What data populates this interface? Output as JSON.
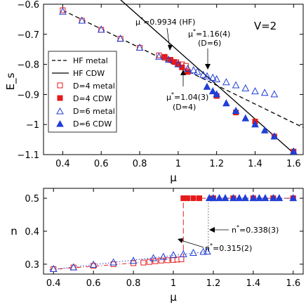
{
  "chart_data": [
    {
      "type": "scatter",
      "xlabel": "μ",
      "ylabel": "E_s",
      "xlim": [
        0.3,
        1.65
      ],
      "ylim": [
        -1.1,
        -0.6
      ],
      "x_ticks": [
        "0.4",
        "0.6",
        "0.8",
        "1",
        "1.2",
        "1.4",
        "1.6"
      ],
      "y_ticks": [
        "−0.6",
        "−0.7",
        "−0.8",
        "−0.9",
        "−1",
        "−1.1"
      ],
      "tag": "V=2",
      "legend_position": "left-middle",
      "legend": [
        "HF metal",
        "HF CDW",
        "D=4 metal",
        "D=4 CDW",
        "D=6 metal",
        "D=6 CDW"
      ],
      "series": [
        {
          "name": "HF metal",
          "style": "dashed",
          "color": "#000000",
          "x": [
            0.4,
            1.65
          ],
          "y": [
            -0.62,
            -1.01
          ]
        },
        {
          "name": "HF CDW",
          "style": "solid",
          "color": "#000000",
          "x": [
            0.7,
            1.6
          ],
          "y": [
            -0.585,
            -1.095
          ]
        },
        {
          "name": "D=4 metal",
          "marker": "open-square",
          "color": "#e41a1c",
          "x": [
            0.4,
            0.5,
            0.6,
            0.7,
            0.8,
            0.9,
            0.93,
            0.96,
            0.99,
            1.02,
            1.04
          ],
          "y": [
            -0.62,
            -0.655,
            -0.685,
            -0.715,
            -0.745,
            -0.77,
            -0.778,
            -0.785,
            -0.793,
            -0.8,
            -0.805
          ]
        },
        {
          "name": "D=4 CDW",
          "marker": "filled-square",
          "color": "#e41a1c",
          "x": [
            0.93,
            0.96,
            0.98,
            1.0,
            1.02,
            1.05,
            1.2,
            1.3,
            1.4,
            1.5,
            1.6
          ],
          "y": [
            -0.775,
            -0.785,
            -0.792,
            -0.8,
            -0.81,
            -0.825,
            -0.905,
            -0.96,
            -0.99,
            -1.04,
            -1.09
          ]
        },
        {
          "name": "D=6 metal",
          "marker": "open-triangle",
          "color": "#1f3fd6",
          "x": [
            0.4,
            0.5,
            0.6,
            0.7,
            0.8,
            0.9,
            0.95,
            1.0,
            1.05,
            1.08,
            1.1,
            1.13,
            1.15,
            1.18,
            1.2,
            1.25,
            1.3,
            1.35,
            1.4,
            1.45,
            1.5
          ],
          "y": [
            -0.625,
            -0.655,
            -0.685,
            -0.715,
            -0.745,
            -0.775,
            -0.785,
            -0.8,
            -0.815,
            -0.82,
            -0.825,
            -0.835,
            -0.84,
            -0.845,
            -0.85,
            -0.86,
            -0.87,
            -0.88,
            -0.89,
            -0.895,
            -0.9
          ]
        },
        {
          "name": "D=6 CDW",
          "marker": "filled-triangle",
          "color": "#1f3fd6",
          "x": [
            1.15,
            1.18,
            1.2,
            1.25,
            1.3,
            1.35,
            1.4,
            1.45,
            1.5,
            1.6
          ],
          "y": [
            -0.875,
            -0.89,
            -0.9,
            -0.93,
            -0.955,
            -0.98,
            -1.0,
            -1.02,
            -1.04,
            -1.09
          ]
        }
      ],
      "annotations": [
        {
          "text": "μ*=0.9934 (HF)",
          "x": 0.9934
        },
        {
          "text": "μ*=1.16(4)",
          "text2": "(D=6)",
          "x": 1.16
        },
        {
          "text": "μ*=1.04(3)",
          "text2": "(D=4)",
          "x": 1.04
        }
      ]
    },
    {
      "type": "scatter",
      "xlabel": "μ",
      "ylabel": "n",
      "xlim": [
        0.35,
        1.65
      ],
      "ylim": [
        0.27,
        0.53
      ],
      "x_ticks": [
        "0.4",
        "0.6",
        "0.8",
        "1",
        "1.2",
        "1.4",
        "1.6"
      ],
      "y_ticks": [
        "0.3",
        "0.4",
        "0.5"
      ],
      "series": [
        {
          "name": "D=4 metal",
          "marker": "open-square",
          "color": "#e41a1c",
          "x": [
            0.4,
            0.5,
            0.6,
            0.7,
            0.8,
            0.85,
            0.88,
            0.91,
            0.94,
            0.97,
            1.0,
            1.02,
            1.04
          ],
          "y": [
            0.285,
            0.29,
            0.295,
            0.3,
            0.303,
            0.305,
            0.307,
            0.309,
            0.311,
            0.312,
            0.313,
            0.314,
            0.315
          ]
        },
        {
          "name": "D=4 CDW",
          "marker": "filled-square",
          "color": "#e41a1c",
          "x": [
            1.05,
            1.07,
            1.1,
            1.13,
            1.2,
            1.3,
            1.4,
            1.5,
            1.6
          ],
          "y": [
            0.5,
            0.5,
            0.5,
            0.5,
            0.5,
            0.5,
            0.5,
            0.5,
            0.5
          ]
        },
        {
          "name": "D=6 metal",
          "marker": "open-triangle",
          "color": "#1f3fd6",
          "x": [
            0.4,
            0.5,
            0.6,
            0.7,
            0.8,
            0.9,
            0.95,
            1.0,
            1.05,
            1.1,
            1.15,
            1.17
          ],
          "y": [
            0.285,
            0.29,
            0.298,
            0.305,
            0.31,
            0.318,
            0.322,
            0.327,
            0.33,
            0.334,
            0.337,
            0.338
          ]
        },
        {
          "name": "D=6 CDW",
          "marker": "filled-triangle",
          "color": "#1f3fd6",
          "x": [
            1.18,
            1.2,
            1.23,
            1.26,
            1.3,
            1.33,
            1.36,
            1.4,
            1.43,
            1.46,
            1.5,
            1.53,
            1.6
          ],
          "y": [
            0.5,
            0.5,
            0.5,
            0.5,
            0.5,
            0.5,
            0.5,
            0.5,
            0.5,
            0.5,
            0.5,
            0.5,
            0.5
          ]
        }
      ],
      "annotations": [
        {
          "text": "n*=0.338(3)",
          "x": 1.17
        },
        {
          "text": "n*=0.315(2)",
          "x": 1.04
        }
      ]
    }
  ]
}
